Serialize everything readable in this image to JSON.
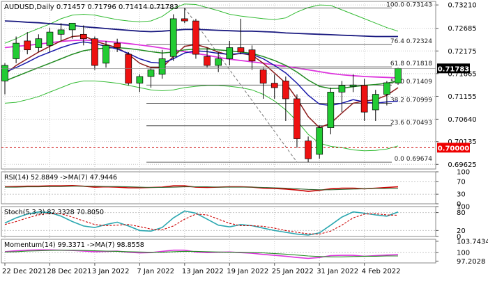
{
  "colors": {
    "background": "#ffffff",
    "grid": "#c8c8c8",
    "bull": "#22cc33",
    "bear": "#ee1111",
    "candle_outline": "#000000",
    "ma_magenta": "#dd33dd",
    "ma_navy": "#1a1a80",
    "ma_darkred": "#8b1a1a",
    "ma_green": "#228b22",
    "ma_blue": "#1a1aaa",
    "bollinger": "#33bb33",
    "fib_line": "#333333",
    "level_red": "#cc0000",
    "label_dark_bg": "#000000",
    "label_red_bg": "#ee0000",
    "rsi_line": "#cc0000",
    "rsi_ma": "#336633",
    "stoch_k": "#2aa7b0",
    "stoch_d": "#cc0000",
    "mom_line": "#dd33dd",
    "mom_ma": "#228b22"
  },
  "chart_data": [
    {
      "type": "candlestick",
      "panel": "price",
      "title": "AUDUSD,Daily",
      "ohlc_header": [
        "0.71457",
        "0.71796",
        "0.71414",
        "0.71783"
      ],
      "ylim": [
        0.6952,
        0.7329
      ],
      "y_ticks": [
        "0.73210",
        "0.72685",
        "0.72175",
        "0.71665",
        "0.71155",
        "0.70640",
        "0.70135",
        "0.69625"
      ],
      "x_ticks": [
        {
          "label": "22 Dec 2021",
          "index": 0
        },
        {
          "label": "28 Dec 2021",
          "index": 4
        },
        {
          "label": "3 Jan 2022",
          "index": 8
        },
        {
          "label": "7 Jan 2022",
          "index": 12
        },
        {
          "label": "13 Jan 2022",
          "index": 16
        },
        {
          "label": "19 Jan 2022",
          "index": 20
        },
        {
          "label": "25 Jan 2022",
          "index": 24
        },
        {
          "label": "31 Jan 2022",
          "index": 28
        },
        {
          "label": "4 Feb 2022",
          "index": 32
        }
      ],
      "candles": [
        [
          0.715,
          0.719,
          0.712,
          0.7185
        ],
        [
          0.72,
          0.725,
          0.719,
          0.7235
        ],
        [
          0.724,
          0.726,
          0.721,
          0.722
        ],
        [
          0.7225,
          0.7255,
          0.7215,
          0.7245
        ],
        [
          0.723,
          0.727,
          0.7215,
          0.726
        ],
        [
          0.7255,
          0.728,
          0.724,
          0.7265
        ],
        [
          0.7265,
          0.728,
          0.7245,
          0.728
        ],
        [
          0.7255,
          0.7275,
          0.723,
          0.7245
        ],
        [
          0.7245,
          0.725,
          0.7175,
          0.7185
        ],
        [
          0.719,
          0.724,
          0.718,
          0.723
        ],
        [
          0.7235,
          0.7245,
          0.7215,
          0.7225
        ],
        [
          0.721,
          0.7215,
          0.714,
          0.7145
        ],
        [
          0.7145,
          0.7165,
          0.7125,
          0.716
        ],
        [
          0.716,
          0.718,
          0.7135,
          0.7175
        ],
        [
          0.7165,
          0.722,
          0.7155,
          0.72
        ],
        [
          0.7205,
          0.73,
          0.7195,
          0.729
        ],
        [
          0.729,
          0.7314,
          0.728,
          0.7285
        ],
        [
          0.7285,
          0.729,
          0.72,
          0.721
        ],
        [
          0.7205,
          0.7225,
          0.718,
          0.7185
        ],
        [
          0.7185,
          0.7215,
          0.717,
          0.72
        ],
        [
          0.72,
          0.724,
          0.7185,
          0.7225
        ],
        [
          0.7225,
          0.729,
          0.721,
          0.7215
        ],
        [
          0.722,
          0.723,
          0.7175,
          0.7195
        ],
        [
          0.7175,
          0.718,
          0.711,
          0.7145
        ],
        [
          0.7145,
          0.7165,
          0.711,
          0.7135
        ],
        [
          0.715,
          0.716,
          0.706,
          0.711
        ],
        [
          0.711,
          0.712,
          0.7,
          0.702
        ],
        [
          0.7015,
          0.7025,
          0.6967,
          0.6975
        ],
        [
          0.6985,
          0.705,
          0.6975,
          0.7045
        ],
        [
          0.7045,
          0.7135,
          0.703,
          0.7125
        ],
        [
          0.7125,
          0.715,
          0.708,
          0.714
        ],
        [
          0.7138,
          0.7165,
          0.7125,
          0.7141
        ],
        [
          0.714,
          0.7155,
          0.706,
          0.708
        ],
        [
          0.7085,
          0.713,
          0.706,
          0.712
        ],
        [
          0.712,
          0.715,
          0.7095,
          0.7146
        ],
        [
          0.71457,
          0.71796,
          0.71414,
          0.71783
        ]
      ],
      "moving_averages": [
        {
          "color": "ma_navy",
          "values": [
            0.7285,
            0.7284,
            0.7282,
            0.7281,
            0.7279,
            0.7277,
            0.7275,
            0.7272,
            0.727,
            0.7268,
            0.7266,
            0.7264,
            0.7262,
            0.7261,
            0.7262,
            0.7264,
            0.7266,
            0.7266,
            0.7265,
            0.7264,
            0.7263,
            0.7262,
            0.7262,
            0.7261,
            0.726,
            0.7258,
            0.7257,
            0.7256,
            0.7255,
            0.7254,
            0.7253,
            0.7252,
            0.7251,
            0.725,
            0.725,
            0.725
          ]
        },
        {
          "color": "ma_magenta",
          "values": [
            0.7225,
            0.7228,
            0.723,
            0.7233,
            0.7236,
            0.7239,
            0.7241,
            0.7242,
            0.7241,
            0.7239,
            0.7237,
            0.7234,
            0.7231,
            0.7228,
            0.7224,
            0.722,
            0.7216,
            0.7212,
            0.7208,
            0.7203,
            0.7199,
            0.7196,
            0.7193,
            0.719,
            0.7186,
            0.7183,
            0.7179,
            0.7175,
            0.7171,
            0.7167,
            0.7164,
            0.7162,
            0.716,
            0.7159,
            0.7158,
            0.7157
          ]
        },
        {
          "color": "ma_darkred",
          "values": [
            0.7165,
            0.7185,
            0.72,
            0.7215,
            0.7228,
            0.724,
            0.725,
            0.7252,
            0.724,
            0.7232,
            0.7225,
            0.721,
            0.719,
            0.718,
            0.718,
            0.7205,
            0.7228,
            0.7232,
            0.7225,
            0.7215,
            0.7208,
            0.7212,
            0.7208,
            0.719,
            0.7168,
            0.7145,
            0.711,
            0.707,
            0.7045,
            0.7055,
            0.7078,
            0.71,
            0.7105,
            0.7108,
            0.7118,
            0.7135
          ]
        },
        {
          "color": "ma_green",
          "values": [
            0.715,
            0.716,
            0.717,
            0.718,
            0.719,
            0.72,
            0.721,
            0.7218,
            0.7222,
            0.7224,
            0.7225,
            0.7223,
            0.722,
            0.7216,
            0.7213,
            0.7215,
            0.722,
            0.7222,
            0.7222,
            0.722,
            0.7218,
            0.7215,
            0.7212,
            0.7205,
            0.7196,
            0.7185,
            0.717,
            0.7152,
            0.7138,
            0.7133,
            0.7134,
            0.7137,
            0.714,
            0.7142,
            0.7145,
            0.715
          ]
        },
        {
          "color": "ma_blue",
          "values": [
            0.717,
            0.718,
            0.7192,
            0.7205,
            0.7215,
            0.7225,
            0.7233,
            0.7238,
            0.7234,
            0.7228,
            0.7222,
            0.7212,
            0.72,
            0.7192,
            0.719,
            0.72,
            0.7213,
            0.7218,
            0.7216,
            0.7212,
            0.721,
            0.7212,
            0.721,
            0.72,
            0.7185,
            0.7168,
            0.7145,
            0.7118,
            0.7098,
            0.7095,
            0.71,
            0.7108,
            0.7103,
            0.71,
            0.7103,
            0.7105
          ]
        }
      ],
      "bollinger": {
        "color": "bollinger",
        "upper": [
          0.7235,
          0.7245,
          0.7258,
          0.7268,
          0.7278,
          0.729,
          0.7298,
          0.73,
          0.7298,
          0.7293,
          0.7288,
          0.7285,
          0.7283,
          0.7285,
          0.7295,
          0.7313,
          0.7323,
          0.7322,
          0.7315,
          0.7308,
          0.73,
          0.7296,
          0.7293,
          0.729,
          0.7288,
          0.7292,
          0.7305,
          0.7315,
          0.7321,
          0.732,
          0.731,
          0.73,
          0.729,
          0.728,
          0.727,
          0.7262
        ],
        "lower": [
          0.71,
          0.7102,
          0.7108,
          0.7115,
          0.7125,
          0.7135,
          0.7145,
          0.715,
          0.715,
          0.7148,
          0.7145,
          0.714,
          0.7135,
          0.713,
          0.7128,
          0.713,
          0.7135,
          0.7138,
          0.714,
          0.714,
          0.7138,
          0.7135,
          0.713,
          0.712,
          0.7105,
          0.7085,
          0.706,
          0.703,
          0.701,
          0.7003,
          0.7,
          0.6995,
          0.6993,
          0.6994,
          0.6997,
          0.7004
        ]
      },
      "fib_levels": [
        {
          "label": "100.0 0.73143",
          "value": 0.73143
        },
        {
          "label": "76.4 0.72324",
          "value": 0.72324
        },
        {
          "label": "61.8 0.71818",
          "value": 0.71818
        },
        {
          "label": "50.0 0.71409",
          "value": 0.71409
        },
        {
          "label": "38.2 0.70999",
          "value": 0.70999
        },
        {
          "label": "23.6 0.70493",
          "value": 0.70493
        },
        {
          "label": "0.0 0.69674",
          "value": 0.69674
        }
      ],
      "fib_trend_line": {
        "from_index": 16,
        "from_value": 0.73143,
        "to_index": 26,
        "to_value": 0.69674
      },
      "horizontal_levels": [
        {
          "value": 0.7,
          "label": "0.70000",
          "style": "dashed"
        }
      ],
      "last_price_label": "0.71783"
    },
    {
      "type": "line",
      "panel": "rsi",
      "label": "RSI(14) 52.8849 ->MA(7) 47.9446",
      "ylim": [
        0,
        100
      ],
      "y_ticks": [
        "100",
        "70",
        "30",
        "0"
      ],
      "levels": [
        70,
        30
      ],
      "series": [
        {
          "color": "rsi_line",
          "values": [
            53,
            54,
            55,
            55,
            56,
            56,
            57,
            55,
            52,
            53,
            52,
            50,
            50,
            51,
            52,
            56,
            56,
            52,
            51,
            52,
            53,
            53,
            52,
            49,
            48,
            46,
            43,
            39,
            42,
            47,
            49,
            49,
            47,
            49,
            51,
            53
          ]
        },
        {
          "color": "rsi_ma",
          "values": [
            52,
            52,
            53,
            53,
            54,
            54,
            55,
            55,
            55,
            54,
            54,
            53,
            52,
            51,
            51,
            52,
            53,
            53,
            53,
            52,
            52,
            52,
            52,
            51,
            50,
            49,
            47,
            45,
            44,
            44,
            45,
            46,
            47,
            48,
            48,
            48
          ]
        }
      ]
    },
    {
      "type": "line",
      "panel": "stochastic",
      "label": "Stoch(5,3,3) 82.3328 70.8050",
      "ylim": [
        0,
        100
      ],
      "y_ticks": [
        "100",
        "80",
        "20",
        "0"
      ],
      "levels": [
        80,
        20
      ],
      "series": [
        {
          "color": "stoch_k",
          "values": [
            45,
            62,
            75,
            82,
            80,
            68,
            50,
            35,
            30,
            40,
            48,
            35,
            20,
            18,
            30,
            62,
            85,
            78,
            58,
            38,
            32,
            40,
            36,
            28,
            20,
            14,
            8,
            5,
            12,
            38,
            65,
            82,
            78,
            72,
            68,
            82
          ]
        },
        {
          "color": "stoch_d",
          "values": [
            40,
            50,
            62,
            72,
            78,
            76,
            65,
            52,
            40,
            36,
            38,
            40,
            33,
            25,
            22,
            35,
            58,
            75,
            72,
            58,
            44,
            36,
            36,
            34,
            28,
            20,
            14,
            9,
            8,
            18,
            38,
            62,
            75,
            76,
            72,
            71
          ]
        }
      ]
    },
    {
      "type": "line",
      "panel": "momentum",
      "label": "Momentum(14) 99.3371 ->MA(7) 98.8558",
      "ylim": [
        96.6,
        104.4
      ],
      "y_ticks": [
        "103.7434",
        "100",
        "97.2028"
      ],
      "levels": [
        100
      ],
      "series": [
        {
          "color": "mom_line",
          "values": [
            100.3,
            100.6,
            100.8,
            100.9,
            100.9,
            100.8,
            100.7,
            100.5,
            100.3,
            100.4,
            100.5,
            100.1,
            99.9,
            100.0,
            100.4,
            100.8,
            100.8,
            100.2,
            100.0,
            100.1,
            100.2,
            100.0,
            99.8,
            99.4,
            99.1,
            98.8,
            98.4,
            98.1,
            98.4,
            99.0,
            99.1,
            99.1,
            98.8,
            99.0,
            99.2,
            99.3
          ]
        },
        {
          "color": "mom_ma",
          "values": [
            100.2,
            100.3,
            100.5,
            100.6,
            100.7,
            100.8,
            100.8,
            100.7,
            100.6,
            100.5,
            100.4,
            100.3,
            100.2,
            100.1,
            100.1,
            100.3,
            100.4,
            100.4,
            100.3,
            100.2,
            100.1,
            100.1,
            100.0,
            99.9,
            99.7,
            99.5,
            99.2,
            98.9,
            98.7,
            98.6,
            98.6,
            98.7,
            98.8,
            98.8,
            98.9,
            98.9
          ]
        }
      ]
    }
  ]
}
